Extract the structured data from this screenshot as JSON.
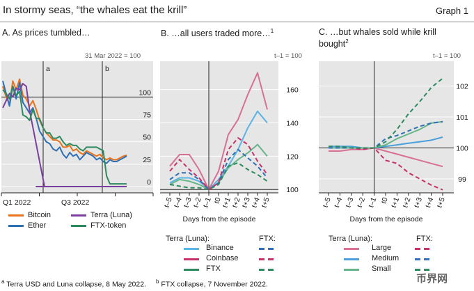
{
  "header": {
    "title": "In stormy seas, “the whales eat the krill”",
    "graph_label": "Graph 1"
  },
  "footnotes": {
    "a_mark": "a",
    "a_text": "Terra USD and Luna collapse, 8 May 2022.",
    "b_mark": "b",
    "b_text": "FTX collapse, 7 November 2022."
  },
  "colors": {
    "bitcoin": "#e8731a",
    "ether": "#2e6fb5",
    "terra": "#7b3fa0",
    "ftx_token": "#2d8a5f",
    "binance": "#5ab4e5",
    "coinbase": "#c8306a",
    "ftx": "#2d8a5f",
    "large": "#d87093",
    "medium": "#4a9fdc",
    "small": "#66b58a",
    "panel_bg": "#e6e6e6"
  },
  "chart_data": [
    {
      "type": "line",
      "title": "A. As prices tumbled…",
      "note": "31 Mar 2022 = 100",
      "xticks": [
        "Q1 2022",
        "Q3 2022"
      ],
      "yticks": [
        0,
        25,
        50,
        75,
        100
      ],
      "ylim": [
        -7,
        140
      ],
      "event_a": "a",
      "event_b": "b",
      "series": [
        {
          "name": "Bitcoin",
          "color": "#e8731a",
          "values": [
            112,
            100,
            92,
            118,
            108,
            120,
            102,
            98,
            90,
            96,
            86,
            74,
            66,
            60,
            56,
            52,
            52,
            50,
            44,
            44,
            46,
            40,
            42,
            38,
            36,
            40,
            38,
            36,
            34,
            36,
            32,
            30,
            32,
            30,
            30,
            32,
            34,
            35
          ]
        },
        {
          "name": "Ether",
          "color": "#2e6fb5",
          "values": [
            118,
            104,
            90,
            112,
            98,
            116,
            94,
            88,
            82,
            88,
            76,
            62,
            56,
            50,
            48,
            42,
            40,
            44,
            36,
            32,
            38,
            34,
            36,
            30,
            34,
            38,
            36,
            34,
            30,
            32,
            28,
            26,
            30,
            28,
            28,
            30,
            32,
            34
          ]
        },
        {
          "name": "Terra (Luna)",
          "color": "#7b3fa0",
          "values": [
            88,
            96,
            104,
            100,
            110,
            108,
            115,
            112,
            85,
            0,
            0,
            0,
            0,
            0,
            0,
            0,
            0,
            0,
            0,
            0,
            0,
            0,
            0,
            0,
            0,
            0,
            0,
            0,
            0,
            0,
            0,
            0,
            0,
            0,
            0,
            0,
            0,
            0
          ]
        },
        {
          "name": "FTX-token",
          "color": "#2d8a5f",
          "values": [
            108,
            104,
            98,
            112,
            102,
            106,
            80,
            78,
            74,
            86,
            76,
            76,
            66,
            60,
            60,
            54,
            54,
            56,
            50,
            46,
            48,
            46,
            46,
            42,
            40,
            44,
            44,
            44,
            44,
            42,
            40,
            12,
            3,
            3,
            3,
            3,
            3,
            3
          ]
        }
      ]
    },
    {
      "type": "line",
      "title": "B. …all users traded more…",
      "title_sup": "1",
      "note": "t–1 = 100",
      "x": [
        "t–5",
        "t–4",
        "t–3",
        "t–2",
        "t–1",
        "t0",
        "t+1",
        "t+2",
        "t+3",
        "t+4",
        "t+5"
      ],
      "xlabel": "Days from the episode",
      "yticks": [
        100,
        120,
        140,
        160
      ],
      "ylim": [
        98,
        177
      ],
      "series": [
        {
          "name": "Terra (Luna): Binance",
          "color": "#5ab4e5",
          "dash": false,
          "values": [
            104,
            107,
            107,
            105,
            100,
            106,
            114,
            124,
            137,
            147,
            140
          ]
        },
        {
          "name": "Terra (Luna): Coinbase",
          "color": "#d87093",
          "dash": false,
          "values": [
            114,
            121,
            121,
            112,
            100,
            111,
            133,
            142,
            157,
            170,
            148
          ]
        },
        {
          "name": "Terra (Luna): FTX",
          "color": "#66b58a",
          "dash": false,
          "values": [
            103,
            106,
            105,
            103,
            100,
            104,
            113,
            118,
            122,
            127,
            120
          ]
        },
        {
          "name": "FTX: Binance",
          "color": "#2e6fb5",
          "dash": true,
          "values": [
            106,
            110,
            110,
            106,
            100,
            104,
            118,
            124,
            119,
            114,
            107
          ]
        },
        {
          "name": "FTX: Coinbase",
          "color": "#c8306a",
          "dash": true,
          "values": [
            111,
            118,
            112,
            107,
            100,
            104,
            124,
            131,
            127,
            117,
            109
          ]
        },
        {
          "name": "FTX: FTX",
          "color": "#2d8a5f",
          "dash": true,
          "values": [
            103,
            102,
            101,
            101,
            100,
            103,
            114,
            116,
            112,
            109,
            105
          ]
        }
      ]
    },
    {
      "type": "line",
      "title": "C. …but whales sold while krill bought",
      "title_line1": "C. …but whales sold while krill",
      "title_line2": "bought",
      "title_sup": "2",
      "note": "t–1 = 100",
      "x": [
        "t–5",
        "t–4",
        "t–3",
        "t–2",
        "t–1",
        "t0",
        "t+1",
        "t+2",
        "t+3",
        "t+4",
        "t+5"
      ],
      "xlabel": "Days from the episode",
      "yticks": [
        99,
        100,
        101,
        102
      ],
      "ylim": [
        98.55,
        102.8
      ],
      "series": [
        {
          "name": "Terra (Luna): Large",
          "color": "#d87093",
          "dash": false,
          "values": [
            99.9,
            99.9,
            99.95,
            99.95,
            100,
            99.9,
            99.8,
            99.7,
            99.6,
            99.5,
            99.4
          ]
        },
        {
          "name": "Terra (Luna): Medium",
          "color": "#4a9fdc",
          "dash": false,
          "values": [
            100.05,
            100.05,
            100.05,
            100.0,
            100,
            100.05,
            100.1,
            100.15,
            100.2,
            100.25,
            100.35
          ]
        },
        {
          "name": "Terra (Luna): Small",
          "color": "#66b58a",
          "dash": false,
          "values": [
            100.0,
            100.0,
            100.0,
            100.0,
            100,
            100.1,
            100.3,
            100.45,
            100.6,
            100.8,
            100.85
          ]
        },
        {
          "name": "FTX: Large",
          "color": "#c8306a",
          "dash": true,
          "values": [
            100.0,
            100.0,
            100.0,
            99.95,
            100,
            99.6,
            99.5,
            99.2,
            99.0,
            98.8,
            98.65
          ]
        },
        {
          "name": "FTX: Medium",
          "color": "#2e6fb5",
          "dash": true,
          "values": [
            100.0,
            100.0,
            100.0,
            100.0,
            100,
            100.3,
            100.4,
            100.55,
            100.7,
            100.8,
            100.85
          ]
        },
        {
          "name": "FTX: Small",
          "color": "#2d8a5f",
          "dash": true,
          "values": [
            100.05,
            100.05,
            100.0,
            100.0,
            100,
            100.2,
            100.6,
            101.1,
            101.5,
            101.95,
            102.25
          ]
        }
      ]
    }
  ],
  "legend_a": {
    "bitcoin": "Bitcoin",
    "ether": "Ether",
    "terra": "Terra (Luna)",
    "ftx_token": "FTX-token"
  },
  "legend_b": {
    "group1": "Terra (Luna):",
    "group2": "FTX:",
    "r1": "Binance",
    "r2": "Coinbase",
    "r3": "FTX"
  },
  "legend_c": {
    "group1": "Terra (Luna):",
    "group2": "FTX:",
    "r1": "Large",
    "r2": "Medium",
    "r3": "Small"
  },
  "watermark": {
    "text": "币界网"
  }
}
